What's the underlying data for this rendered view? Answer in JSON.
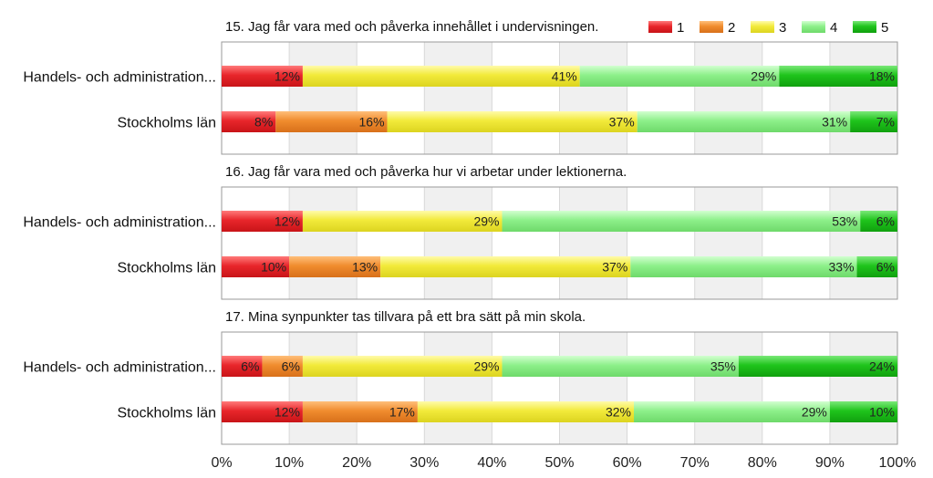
{
  "chart_data": {
    "type": "bar",
    "orientation": "horizontal",
    "stacked": true,
    "percent_axis": true,
    "x_ticks": [
      "0%",
      "10%",
      "20%",
      "30%",
      "40%",
      "50%",
      "60%",
      "70%",
      "80%",
      "90%",
      "100%"
    ],
    "xlim": [
      0,
      100
    ],
    "grid": "alternating vertical bands",
    "legend": {
      "placement": "top-right",
      "entries": [
        "1",
        "2",
        "3",
        "4",
        "5"
      ]
    },
    "colors": [
      "#e8262b",
      "#f08c2e",
      "#f2ea3a",
      "#8df08a",
      "#1fc41c"
    ],
    "panels": [
      {
        "title": "15. Jag får vara med och påverka innehållet i undervisningen.",
        "categories": [
          "Handels- och administration...",
          "Stockholms län"
        ],
        "series": [
          {
            "name": "1",
            "values": [
              12,
              8
            ],
            "labels": [
              "12%",
              "8%"
            ]
          },
          {
            "name": "2",
            "values": [
              0,
              16.5
            ],
            "labels": [
              "",
              "16%"
            ]
          },
          {
            "name": "3",
            "values": [
              41,
              37
            ],
            "labels": [
              "41%",
              "37%"
            ]
          },
          {
            "name": "4",
            "values": [
              29.5,
              31.5
            ],
            "labels": [
              "29%",
              "31%"
            ]
          },
          {
            "name": "5",
            "values": [
              17.5,
              7
            ],
            "labels": [
              "18%",
              "7%"
            ]
          }
        ]
      },
      {
        "title": "16. Jag får vara med och påverka hur vi arbetar under lektionerna.",
        "categories": [
          "Handels- och administration...",
          "Stockholms län"
        ],
        "series": [
          {
            "name": "1",
            "values": [
              12,
              10
            ],
            "labels": [
              "12%",
              "10%"
            ]
          },
          {
            "name": "2",
            "values": [
              0,
              13.5
            ],
            "labels": [
              "",
              "13%"
            ]
          },
          {
            "name": "3",
            "values": [
              29.5,
              37
            ],
            "labels": [
              "29%",
              "37%"
            ]
          },
          {
            "name": "4",
            "values": [
              53,
              33.5
            ],
            "labels": [
              "53%",
              "33%"
            ]
          },
          {
            "name": "5",
            "values": [
              5.5,
              6
            ],
            "labels": [
              "6%",
              "6%"
            ]
          }
        ]
      },
      {
        "title": "17. Mina synpunkter tas tillvara på ett bra sätt på min skola.",
        "categories": [
          "Handels- och administration...",
          "Stockholms län"
        ],
        "series": [
          {
            "name": "1",
            "values": [
              6,
              12
            ],
            "labels": [
              "6%",
              "12%"
            ]
          },
          {
            "name": "2",
            "values": [
              6,
              17
            ],
            "labels": [
              "6%",
              "17%"
            ]
          },
          {
            "name": "3",
            "values": [
              29.5,
              32
            ],
            "labels": [
              "29%",
              "32%"
            ]
          },
          {
            "name": "4",
            "values": [
              35,
              29
            ],
            "labels": [
              "35%",
              "29%"
            ]
          },
          {
            "name": "5",
            "values": [
              23.5,
              10
            ],
            "labels": [
              "24%",
              "10%"
            ]
          }
        ]
      }
    ]
  }
}
